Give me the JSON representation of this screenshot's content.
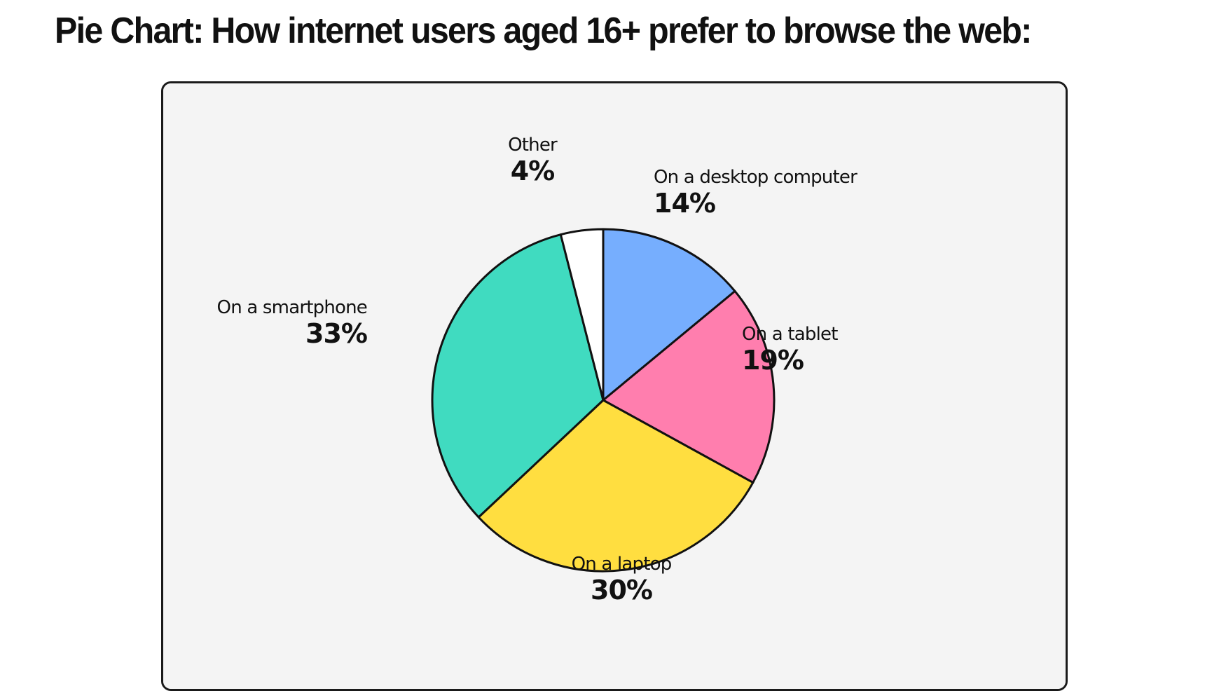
{
  "page_title": "Pie Chart: How internet users aged 16+ prefer to browse the web:",
  "chart_data": {
    "type": "pie",
    "background": "#f4f4f4",
    "outline_color": "#111111",
    "slices": [
      {
        "label": "On a desktop computer",
        "value": 14,
        "display": "14%",
        "color": "#76aefe"
      },
      {
        "label": "On a tablet",
        "value": 19,
        "display": "19%",
        "color": "#ff7eae"
      },
      {
        "label": "On a laptop",
        "value": 30,
        "display": "30%",
        "color": "#ffde40"
      },
      {
        "label": "On a smartphone",
        "value": 33,
        "display": "33%",
        "color": "#40dbc0"
      },
      {
        "label": "Other",
        "value": 4,
        "display": "4%",
        "color": "#ffffff"
      }
    ]
  }
}
